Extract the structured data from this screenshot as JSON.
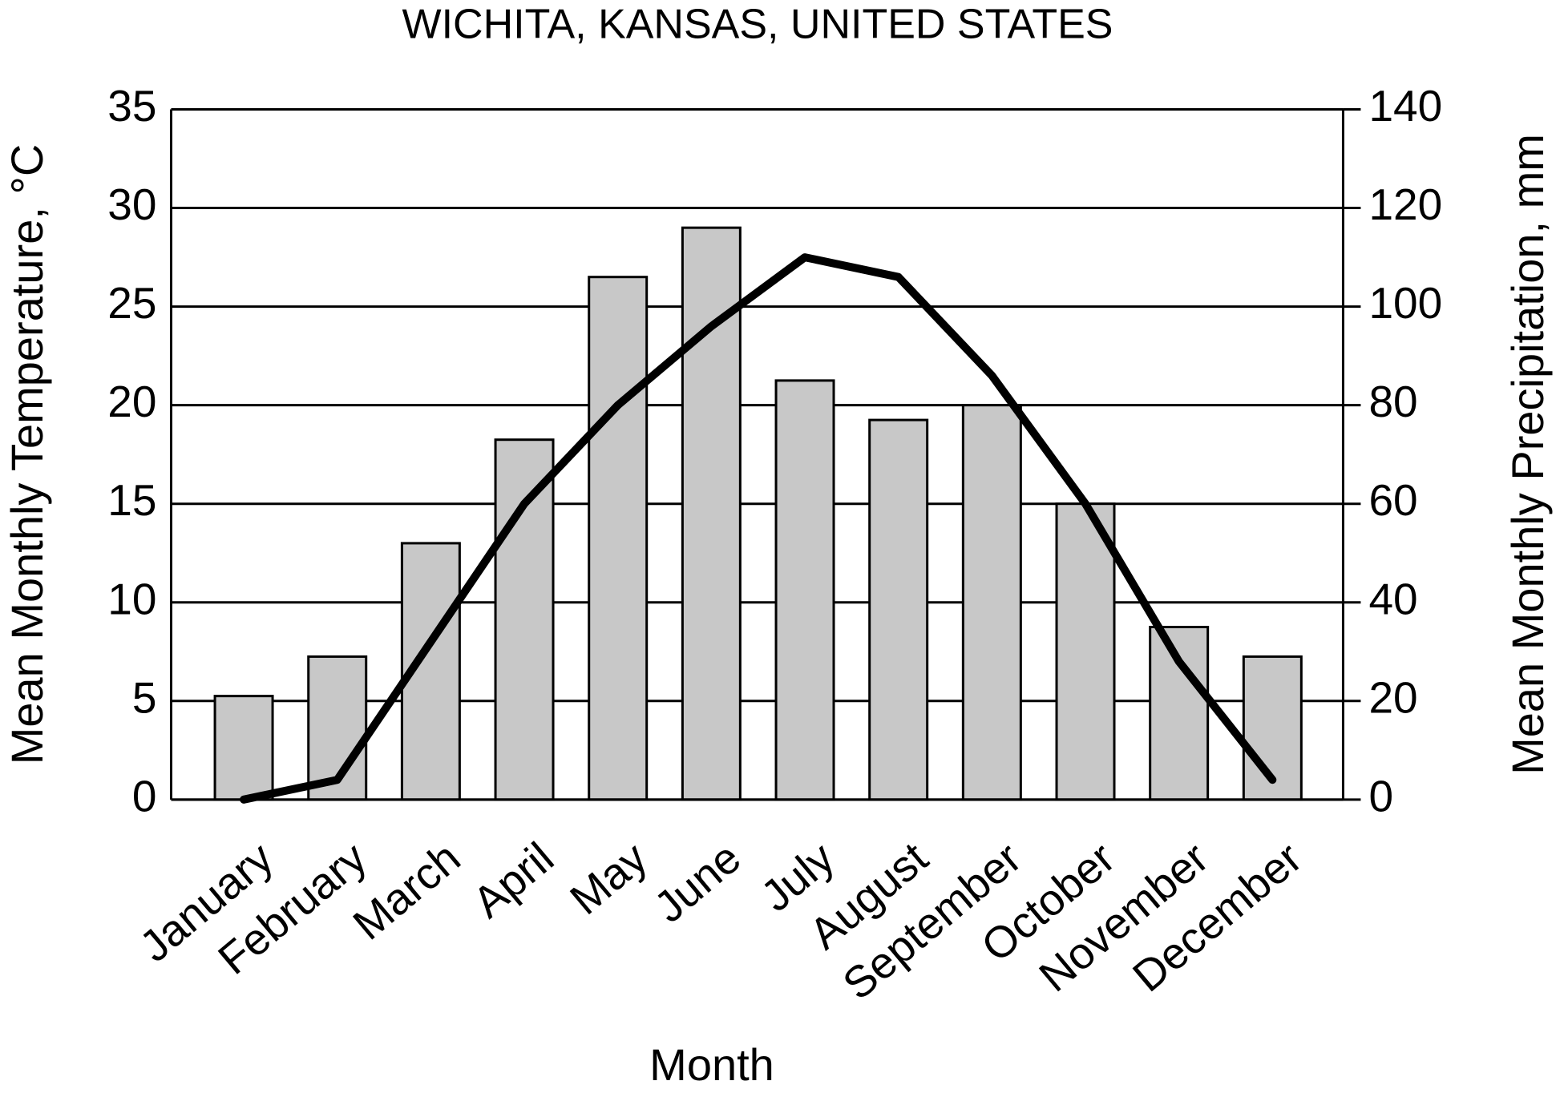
{
  "chart_data": {
    "type": "combo",
    "title": "WICHITA, KANSAS, UNITED STATES",
    "x_label": "Month",
    "y_label": "Mean Monthly Temperature, °C",
    "y2_label": "Mean Monthly Precipitation, mm",
    "categories": [
      "January",
      "February",
      "March",
      "April",
      "May",
      "June",
      "July",
      "August",
      "September",
      "October",
      "November",
      "December"
    ],
    "series": [
      {
        "type": "bar",
        "axis": "y2",
        "color": "#c8c8c8",
        "values": [
          21,
          29,
          52,
          73,
          106,
          116,
          85,
          77,
          80,
          60,
          35,
          29
        ]
      },
      {
        "type": "line",
        "color": "#000000",
        "values": [
          0,
          1,
          8,
          15,
          20,
          24,
          27.5,
          26.5,
          21.5,
          15,
          7,
          1
        ]
      }
    ],
    "ylim": [
      0,
      35
    ],
    "yticks": [
      0,
      5,
      10,
      15,
      20,
      25,
      30,
      35
    ],
    "y2lim": [
      0,
      140
    ],
    "y2ticks": [
      0,
      20,
      40,
      60,
      80,
      100,
      120,
      140
    ],
    "grid": true
  }
}
